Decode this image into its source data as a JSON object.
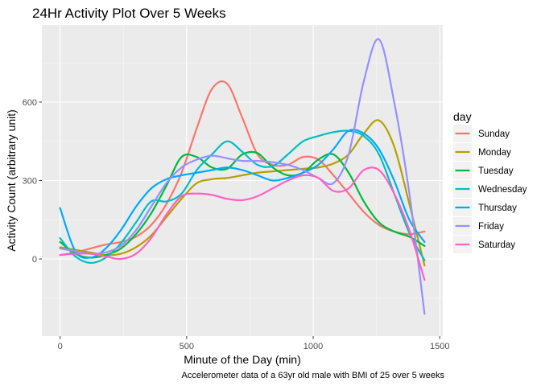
{
  "chart_data": {
    "type": "line",
    "title": "24Hr Activity Plot Over 5 Weeks",
    "xlabel": "Minute of the Day (min)",
    "ylabel": "Activity Count (arbitrary unit)",
    "caption": "Accelerometer data of a 63yr old male with BMI of 25 over 5 weeks",
    "xlim": [
      -72,
      1512
    ],
    "ylim": [
      -295,
      895
    ],
    "x_ticks": [
      0,
      500,
      1000,
      1500
    ],
    "x_tick_labels": [
      "0",
      "500",
      "1000",
      "1500"
    ],
    "y_ticks": [
      0,
      300,
      600
    ],
    "y_tick_labels": [
      "0",
      "300",
      "600"
    ],
    "grid": true,
    "legend": {
      "title": "day",
      "placement": "right"
    },
    "x": [
      0,
      60,
      120,
      180,
      240,
      300,
      360,
      420,
      480,
      540,
      600,
      660,
      720,
      780,
      840,
      900,
      960,
      1020,
      1080,
      1140,
      1200,
      1260,
      1320,
      1380,
      1440
    ],
    "series": [
      {
        "name": "Sunday",
        "color": "#F8766D",
        "values": [
          15,
          25,
          40,
          55,
          65,
          85,
          130,
          210,
          330,
          500,
          650,
          670,
          540,
          400,
          360,
          360,
          390,
          380,
          320,
          250,
          180,
          130,
          105,
          95,
          105
        ]
      },
      {
        "name": "Monday",
        "color": "#B79F00",
        "values": [
          45,
          35,
          25,
          15,
          20,
          45,
          90,
          160,
          230,
          290,
          305,
          310,
          320,
          330,
          335,
          340,
          345,
          350,
          365,
          400,
          480,
          530,
          430,
          210,
          -25
        ]
      },
      {
        "name": "Tuesday",
        "color": "#00BA38",
        "values": [
          65,
          20,
          5,
          15,
          40,
          95,
          175,
          280,
          390,
          390,
          350,
          345,
          400,
          405,
          350,
          320,
          330,
          380,
          400,
          330,
          220,
          140,
          105,
          85,
          50
        ]
      },
      {
        "name": "Wednesday",
        "color": "#00BFC4",
        "values": [
          80,
          10,
          -15,
          5,
          60,
          140,
          220,
          220,
          250,
          340,
          400,
          450,
          410,
          360,
          355,
          400,
          450,
          470,
          485,
          490,
          470,
          400,
          250,
          100,
          -5
        ]
      },
      {
        "name": "Thursday",
        "color": "#00A9FF",
        "values": [
          195,
          30,
          5,
          40,
          110,
          200,
          270,
          305,
          320,
          330,
          340,
          350,
          340,
          320,
          300,
          310,
          330,
          360,
          420,
          490,
          480,
          420,
          300,
          150,
          65
        ]
      },
      {
        "name": "Friday",
        "color": "#9590FF",
        "values": [
          40,
          30,
          20,
          25,
          50,
          110,
          200,
          290,
          350,
          380,
          395,
          385,
          375,
          375,
          370,
          360,
          340,
          310,
          290,
          400,
          680,
          840,
          600,
          250,
          -210
        ]
      },
      {
        "name": "Saturday",
        "color": "#FF61C3",
        "values": [
          15,
          20,
          20,
          10,
          0,
          20,
          80,
          170,
          240,
          250,
          245,
          230,
          225,
          240,
          270,
          300,
          320,
          310,
          260,
          270,
          340,
          340,
          250,
          110,
          -80
        ]
      }
    ]
  }
}
